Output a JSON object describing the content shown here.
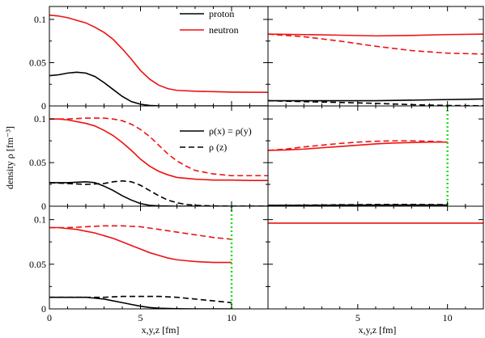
{
  "figure": {
    "ylabel": "density ρ [fm⁻³]",
    "xlabel": "x,y,z [fm]",
    "colors": {
      "proton": "#000000",
      "neutron": "#ee1111",
      "boundary": "#22dd22"
    }
  },
  "legends": [
    {
      "entries": [
        {
          "label": "proton",
          "color": "#000000",
          "style": "solid"
        },
        {
          "label": "neutron",
          "color": "#ee1111",
          "style": "solid"
        }
      ]
    },
    {
      "entries": [
        {
          "label": "ρ(x) = ρ(y)",
          "color": "#000000",
          "style": "solid"
        },
        {
          "label": "ρ (z)",
          "color": "#000000",
          "style": "dashed"
        }
      ]
    }
  ],
  "chart_data": [
    {
      "type": "line",
      "panel": "top-left",
      "xlim": [
        0,
        12
      ],
      "ylim": [
        0,
        0.115
      ],
      "yticks": [
        "0",
        "0.05",
        "0.1"
      ],
      "series": [
        {
          "name": "proton",
          "color": "#000000",
          "style": "solid",
          "points": [
            [
              0,
              0.035
            ],
            [
              0.5,
              0.036
            ],
            [
              1,
              0.038
            ],
            [
              1.5,
              0.039
            ],
            [
              2,
              0.038
            ],
            [
              2.5,
              0.034
            ],
            [
              3,
              0.027
            ],
            [
              3.5,
              0.019
            ],
            [
              4,
              0.011
            ],
            [
              4.5,
              0.005
            ],
            [
              5,
              0.002
            ],
            [
              5.5,
              0.0005
            ],
            [
              6,
              0.0001
            ],
            [
              7,
              0
            ],
            [
              12,
              0
            ]
          ]
        },
        {
          "name": "neutron",
          "color": "#ee1111",
          "style": "solid",
          "points": [
            [
              0,
              0.105
            ],
            [
              0.5,
              0.104
            ],
            [
              1,
              0.102
            ],
            [
              1.5,
              0.099
            ],
            [
              2,
              0.096
            ],
            [
              2.5,
              0.091
            ],
            [
              3,
              0.085
            ],
            [
              3.5,
              0.077
            ],
            [
              4,
              0.066
            ],
            [
              4.5,
              0.054
            ],
            [
              5,
              0.041
            ],
            [
              5.5,
              0.031
            ],
            [
              6,
              0.024
            ],
            [
              6.5,
              0.02
            ],
            [
              7,
              0.018
            ],
            [
              8,
              0.017
            ],
            [
              9,
              0.0165
            ],
            [
              10,
              0.016
            ],
            [
              11,
              0.0158
            ],
            [
              12,
              0.0157
            ]
          ]
        }
      ]
    },
    {
      "type": "line",
      "panel": "top-right",
      "xlim": [
        0,
        12
      ],
      "ylim": [
        0,
        0.115
      ],
      "series": [
        {
          "color": "#ee1111",
          "style": "solid",
          "points": [
            [
              0,
              0.083
            ],
            [
              2,
              0.0825
            ],
            [
              4,
              0.0818
            ],
            [
              6,
              0.081
            ],
            [
              8,
              0.0815
            ],
            [
              10,
              0.0825
            ],
            [
              12,
              0.083
            ]
          ]
        },
        {
          "color": "#ee1111",
          "style": "dashed",
          "points": [
            [
              0,
              0.083
            ],
            [
              2,
              0.08
            ],
            [
              4,
              0.075
            ],
            [
              6,
              0.069
            ],
            [
              8,
              0.064
            ],
            [
              10,
              0.061
            ],
            [
              12,
              0.06
            ]
          ]
        },
        {
          "color": "#000000",
          "style": "solid",
          "points": [
            [
              0,
              0.006
            ],
            [
              3,
              0.006
            ],
            [
              6,
              0.006
            ],
            [
              9,
              0.007
            ],
            [
              12,
              0.008
            ]
          ]
        },
        {
          "color": "#000000",
          "style": "dashed",
          "points": [
            [
              0,
              0.006
            ],
            [
              2,
              0.005
            ],
            [
              4,
              0.004
            ],
            [
              6,
              0.003
            ],
            [
              8,
              0.0015
            ],
            [
              10,
              0.0005
            ],
            [
              12,
              0.0002
            ]
          ]
        }
      ]
    },
    {
      "type": "line",
      "panel": "middle-left",
      "xlim": [
        0,
        12
      ],
      "ylim": [
        0,
        0.115
      ],
      "yticks": [
        "0",
        "0.05",
        "0.1"
      ],
      "series": [
        {
          "color": "#ee1111",
          "style": "solid",
          "points": [
            [
              0,
              0.1
            ],
            [
              0.5,
              0.1
            ],
            [
              1,
              0.099
            ],
            [
              1.5,
              0.097
            ],
            [
              2,
              0.095
            ],
            [
              2.5,
              0.092
            ],
            [
              3,
              0.087
            ],
            [
              3.5,
              0.081
            ],
            [
              4,
              0.073
            ],
            [
              4.5,
              0.064
            ],
            [
              5,
              0.054
            ],
            [
              5.5,
              0.046
            ],
            [
              6,
              0.04
            ],
            [
              6.5,
              0.036
            ],
            [
              7,
              0.033
            ],
            [
              8,
              0.031
            ],
            [
              9,
              0.03
            ],
            [
              10,
              0.03
            ],
            [
              11,
              0.0295
            ],
            [
              12,
              0.0295
            ]
          ]
        },
        {
          "color": "#ee1111",
          "style": "dashed",
          "points": [
            [
              0,
              0.1
            ],
            [
              1,
              0.1
            ],
            [
              2,
              0.101
            ],
            [
              3,
              0.101
            ],
            [
              3.5,
              0.1
            ],
            [
              4,
              0.098
            ],
            [
              4.5,
              0.094
            ],
            [
              5,
              0.088
            ],
            [
              5.5,
              0.08
            ],
            [
              6,
              0.07
            ],
            [
              6.5,
              0.06
            ],
            [
              7,
              0.052
            ],
            [
              7.5,
              0.046
            ],
            [
              8,
              0.041
            ],
            [
              9,
              0.037
            ],
            [
              10,
              0.035
            ],
            [
              11,
              0.035
            ],
            [
              12,
              0.035
            ]
          ]
        },
        {
          "color": "#000000",
          "style": "solid",
          "points": [
            [
              0,
              0.027
            ],
            [
              1,
              0.027
            ],
            [
              2,
              0.028
            ],
            [
              2.5,
              0.027
            ],
            [
              3,
              0.023
            ],
            [
              3.5,
              0.018
            ],
            [
              4,
              0.012
            ],
            [
              4.5,
              0.007
            ],
            [
              5,
              0.003
            ],
            [
              5.5,
              0.001
            ],
            [
              6,
              0.0003
            ],
            [
              7,
              0
            ],
            [
              12,
              0
            ]
          ]
        },
        {
          "color": "#000000",
          "style": "dashed",
          "points": [
            [
              0,
              0.027
            ],
            [
              1,
              0.026
            ],
            [
              2,
              0.025
            ],
            [
              3,
              0.026
            ],
            [
              3.5,
              0.028
            ],
            [
              4,
              0.029
            ],
            [
              4.5,
              0.028
            ],
            [
              5,
              0.024
            ],
            [
              5.5,
              0.018
            ],
            [
              6,
              0.012
            ],
            [
              6.5,
              0.007
            ],
            [
              7,
              0.004
            ],
            [
              7.5,
              0.002
            ],
            [
              8,
              0.001
            ],
            [
              9,
              0.0003
            ],
            [
              10,
              0.0001
            ],
            [
              12,
              0
            ]
          ]
        }
      ]
    },
    {
      "type": "line",
      "panel": "middle-right",
      "xlim": [
        0,
        12
      ],
      "ylim": [
        0,
        0.115
      ],
      "boundary_x": 10,
      "series": [
        {
          "color": "#ee1111",
          "style": "solid",
          "points": [
            [
              0,
              0.064
            ],
            [
              1,
              0.0645
            ],
            [
              2,
              0.0655
            ],
            [
              3,
              0.067
            ],
            [
              4,
              0.0685
            ],
            [
              5,
              0.07
            ],
            [
              6,
              0.0715
            ],
            [
              7,
              0.0725
            ],
            [
              8,
              0.073
            ],
            [
              9,
              0.0735
            ],
            [
              10,
              0.0735
            ]
          ]
        },
        {
          "color": "#ee1111",
          "style": "dashed",
          "points": [
            [
              0,
              0.064
            ],
            [
              1,
              0.0655
            ],
            [
              2,
              0.068
            ],
            [
              3,
              0.07
            ],
            [
              4,
              0.072
            ],
            [
              5,
              0.0735
            ],
            [
              6,
              0.0745
            ],
            [
              7,
              0.075
            ],
            [
              8,
              0.075
            ],
            [
              9,
              0.0745
            ],
            [
              10,
              0.0735
            ]
          ]
        },
        {
          "color": "#000000",
          "style": "solid",
          "points": [
            [
              0,
              0.001
            ],
            [
              2,
              0.001
            ],
            [
              4,
              0.0012
            ],
            [
              6,
              0.0013
            ],
            [
              8,
              0.0013
            ],
            [
              10,
              0.0013
            ]
          ]
        },
        {
          "color": "#000000",
          "style": "dashed",
          "points": [
            [
              0,
              0.001
            ],
            [
              2,
              0.0012
            ],
            [
              4,
              0.0016
            ],
            [
              6,
              0.0019
            ],
            [
              8,
              0.0019
            ],
            [
              10,
              0.0018
            ]
          ]
        }
      ]
    },
    {
      "type": "line",
      "panel": "bottom-left",
      "xlim": [
        0,
        12
      ],
      "ylim": [
        0,
        0.115
      ],
      "yticks": [
        "0",
        "0.05",
        "0.1"
      ],
      "xticks": [
        "0",
        "5",
        "10"
      ],
      "boundary_x": 10,
      "series": [
        {
          "color": "#ee1111",
          "style": "solid",
          "points": [
            [
              0,
              0.091
            ],
            [
              0.5,
              0.091
            ],
            [
              1,
              0.09
            ],
            [
              1.5,
              0.089
            ],
            [
              2,
              0.087
            ],
            [
              2.5,
              0.085
            ],
            [
              3,
              0.082
            ],
            [
              3.5,
              0.079
            ],
            [
              4,
              0.075
            ],
            [
              4.5,
              0.071
            ],
            [
              5,
              0.067
            ],
            [
              5.5,
              0.063
            ],
            [
              6,
              0.06
            ],
            [
              6.5,
              0.057
            ],
            [
              7,
              0.055
            ],
            [
              7.5,
              0.054
            ],
            [
              8,
              0.053
            ],
            [
              9,
              0.052
            ],
            [
              10,
              0.052
            ]
          ]
        },
        {
          "color": "#ee1111",
          "style": "dashed",
          "points": [
            [
              0,
              0.091
            ],
            [
              1,
              0.091
            ],
            [
              2,
              0.092
            ],
            [
              3,
              0.093
            ],
            [
              4,
              0.093
            ],
            [
              5,
              0.092
            ],
            [
              6,
              0.089
            ],
            [
              7,
              0.086
            ],
            [
              8,
              0.083
            ],
            [
              9,
              0.08
            ],
            [
              10,
              0.078
            ]
          ]
        },
        {
          "color": "#000000",
          "style": "solid",
          "points": [
            [
              0,
              0.013
            ],
            [
              1,
              0.013
            ],
            [
              2,
              0.013
            ],
            [
              2.5,
              0.012
            ],
            [
              3,
              0.011
            ],
            [
              3.5,
              0.009
            ],
            [
              4,
              0.007
            ],
            [
              4.5,
              0.005
            ],
            [
              5,
              0.003
            ],
            [
              5.5,
              0.0015
            ],
            [
              6,
              0.0008
            ],
            [
              7,
              0.0002
            ],
            [
              8,
              0
            ],
            [
              10,
              0
            ]
          ]
        },
        {
          "color": "#000000",
          "style": "dashed",
          "points": [
            [
              0,
              0.013
            ],
            [
              1,
              0.013
            ],
            [
              2,
              0.013
            ],
            [
              3,
              0.013
            ],
            [
              4,
              0.014
            ],
            [
              5,
              0.014
            ],
            [
              6,
              0.014
            ],
            [
              7,
              0.013
            ],
            [
              8,
              0.011
            ],
            [
              9,
              0.009
            ],
            [
              10,
              0.007
            ]
          ]
        }
      ]
    },
    {
      "type": "line",
      "panel": "bottom-right",
      "xlim": [
        0,
        12
      ],
      "ylim": [
        0,
        0.115
      ],
      "xticks": [
        "5",
        "10"
      ],
      "series": [
        {
          "color": "#ee1111",
          "style": "solid",
          "points": [
            [
              0,
              0.096
            ],
            [
              12,
              0.096
            ]
          ]
        }
      ]
    }
  ]
}
